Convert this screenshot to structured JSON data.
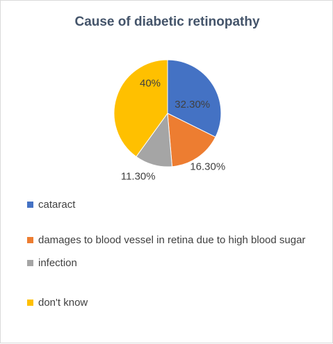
{
  "chart_data": {
    "type": "pie",
    "title": "Cause of diabetic retinopathy",
    "categories": [
      "cataract",
      "damages to blood vessel in retina due to high blood sugar",
      "infection",
      "don't know"
    ],
    "values": [
      32.3,
      16.3,
      11.3,
      40
    ],
    "data_labels": [
      "32.30%",
      "16.30%",
      "11.30%",
      "40%"
    ],
    "colors": [
      "#4472c4",
      "#ed7d31",
      "#a5a5a5",
      "#ffc000"
    ],
    "legend_position": "bottom"
  }
}
